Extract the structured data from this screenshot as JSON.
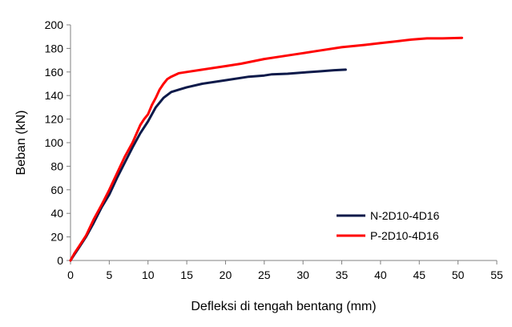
{
  "chart_data": {
    "type": "line",
    "title": "",
    "xlabel": "Defleksi di tengah bentang (mm)",
    "ylabel": "Beban (kN)",
    "xlim": [
      0,
      55
    ],
    "ylim": [
      0,
      200
    ],
    "xticks": [
      "0",
      "5",
      "10",
      "15",
      "20",
      "25",
      "30",
      "35",
      "40",
      "45",
      "50",
      "55"
    ],
    "yticks": [
      "0",
      "20",
      "40",
      "60",
      "80",
      "100",
      "120",
      "140",
      "160",
      "180",
      "200"
    ],
    "grid": false,
    "legend_position": "bottom-right",
    "series": [
      {
        "name": "N-2D10-4D16",
        "color": "#0d1a4a",
        "points": [
          [
            0,
            0
          ],
          [
            0.5,
            5
          ],
          [
            1,
            10
          ],
          [
            2,
            20
          ],
          [
            3,
            32
          ],
          [
            4,
            45
          ],
          [
            5,
            56
          ],
          [
            6,
            70
          ],
          [
            7,
            83
          ],
          [
            8,
            96
          ],
          [
            9,
            108
          ],
          [
            10,
            118
          ],
          [
            11,
            130
          ],
          [
            12,
            138
          ],
          [
            13,
            143
          ],
          [
            14,
            145
          ],
          [
            15,
            147
          ],
          [
            17,
            150
          ],
          [
            20,
            153
          ],
          [
            23,
            156
          ],
          [
            25,
            157
          ],
          [
            26,
            158
          ],
          [
            28,
            158.5
          ],
          [
            30,
            159.5
          ],
          [
            32,
            160.5
          ],
          [
            34,
            161.5
          ],
          [
            35.5,
            162
          ]
        ]
      },
      {
        "name": "P-2D10-4D16",
        "color": "#ff0000",
        "points": [
          [
            0,
            0
          ],
          [
            0.5,
            6
          ],
          [
            1,
            11
          ],
          [
            2,
            21
          ],
          [
            3,
            35
          ],
          [
            4,
            47
          ],
          [
            5,
            60
          ],
          [
            6,
            74
          ],
          [
            7,
            88
          ],
          [
            8,
            100
          ],
          [
            9,
            115
          ],
          [
            9.5,
            120
          ],
          [
            10,
            124
          ],
          [
            10.5,
            132
          ],
          [
            11,
            138
          ],
          [
            11.5,
            145
          ],
          [
            12,
            150
          ],
          [
            12.5,
            154
          ],
          [
            13,
            156
          ],
          [
            14,
            159
          ],
          [
            15,
            160
          ],
          [
            17,
            162
          ],
          [
            20,
            165
          ],
          [
            22,
            167
          ],
          [
            25,
            171
          ],
          [
            27,
            173
          ],
          [
            30,
            176
          ],
          [
            32,
            178
          ],
          [
            35,
            181
          ],
          [
            38,
            183
          ],
          [
            40,
            184.5
          ],
          [
            42,
            186
          ],
          [
            44,
            187.5
          ],
          [
            46,
            188.5
          ],
          [
            48,
            188.5
          ],
          [
            50.5,
            189
          ]
        ]
      }
    ]
  }
}
